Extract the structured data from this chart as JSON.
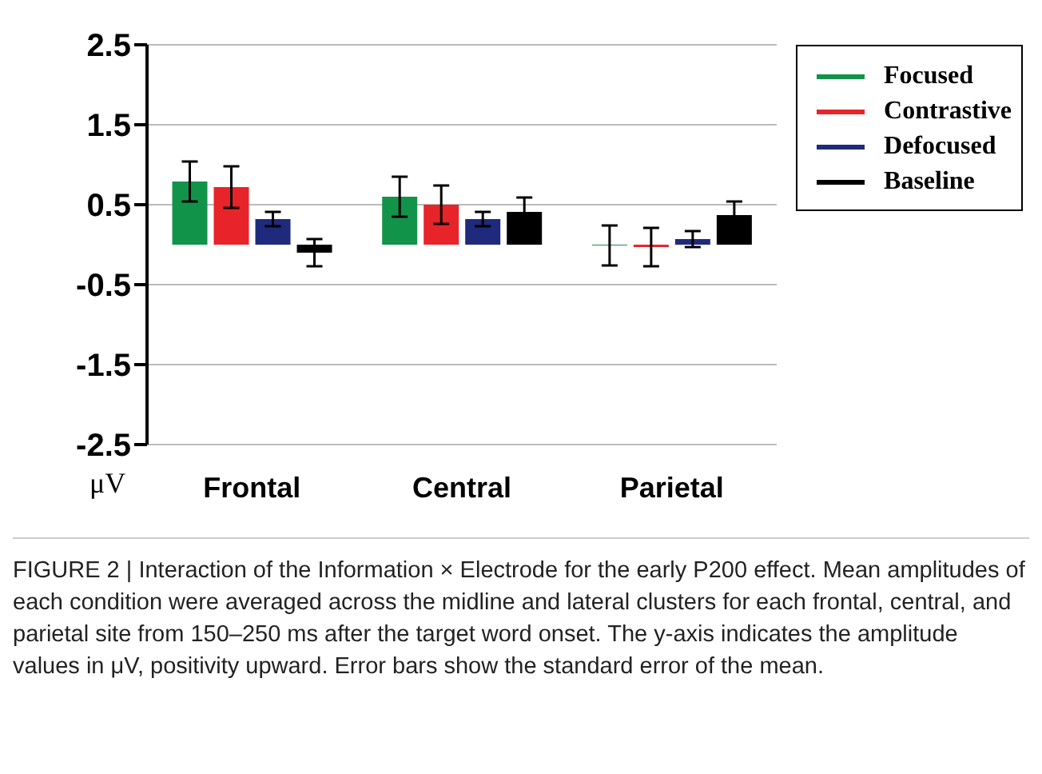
{
  "chart_data": {
    "type": "bar",
    "ylabel": "μV",
    "categories": [
      "Frontal",
      "Central",
      "Parietal"
    ],
    "series": [
      {
        "name": "Focused",
        "color": "#12934a",
        "values": [
          0.79,
          0.6,
          -0.01
        ],
        "errors": [
          0.25,
          0.25,
          0.25
        ]
      },
      {
        "name": "Contrastive",
        "color": "#e8242b",
        "values": [
          0.72,
          0.5,
          -0.03
        ],
        "errors": [
          0.26,
          0.24,
          0.24
        ]
      },
      {
        "name": "Defocused",
        "color": "#1f2a7c",
        "values": [
          0.32,
          0.32,
          0.07
        ],
        "errors": [
          0.09,
          0.09,
          0.1
        ]
      },
      {
        "name": "Baseline",
        "color": "#000000",
        "values": [
          -0.1,
          0.41,
          0.37
        ],
        "errors": [
          0.17,
          0.18,
          0.17
        ]
      }
    ],
    "ylim": [
      -2.5,
      2.5
    ],
    "yticks": [
      2.5,
      1.5,
      0.5,
      -0.5,
      -1.5,
      -2.5
    ],
    "grid": "y",
    "legend": "top right",
    "annotations": [
      "FIGURE 2 | Interaction of the Information × Electrode for the early P200 effect. Mean amplitudes of each condition were averaged across the midline and lateral clusters for each frontal, central, and parietal site from 150–250 ms after the target word onset. The y-axis indicates the amplitude values in μV, positivity upward. Error bars show the standard error of the mean."
    ]
  }
}
